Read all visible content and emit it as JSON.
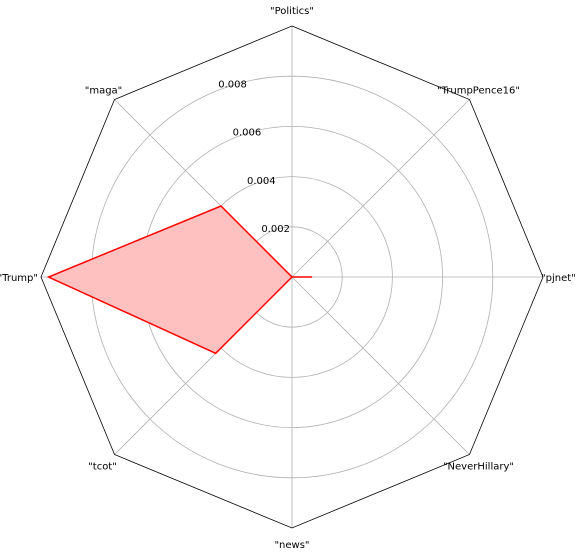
{
  "chart_data": {
    "type": "radar",
    "categories": [
      "\"Politics\"",
      "\"TrumpPence16\"",
      "\"pjnet\"",
      "\"NeverHillary\"",
      "\"news\"",
      "\"tcot\"",
      "\"Trump\"",
      "\"maga\""
    ],
    "series": [
      {
        "values": [
          0.0,
          0.0,
          0.0008,
          0.0,
          0.0,
          0.0043,
          0.0097,
          0.004
        ]
      }
    ],
    "rlim": [
      0,
      0.01
    ],
    "radial_ticks": [
      0.002,
      0.004,
      0.006,
      0.008
    ],
    "radial_tick_labels": [
      "0.002",
      "0.004",
      "0.006",
      "0.008"
    ],
    "grid": true,
    "frame": "octagon",
    "colors": {
      "line": "#ff0000",
      "fill": "#ffc0c0",
      "grid": "#b0b0b0",
      "frame": "#000000"
    }
  }
}
